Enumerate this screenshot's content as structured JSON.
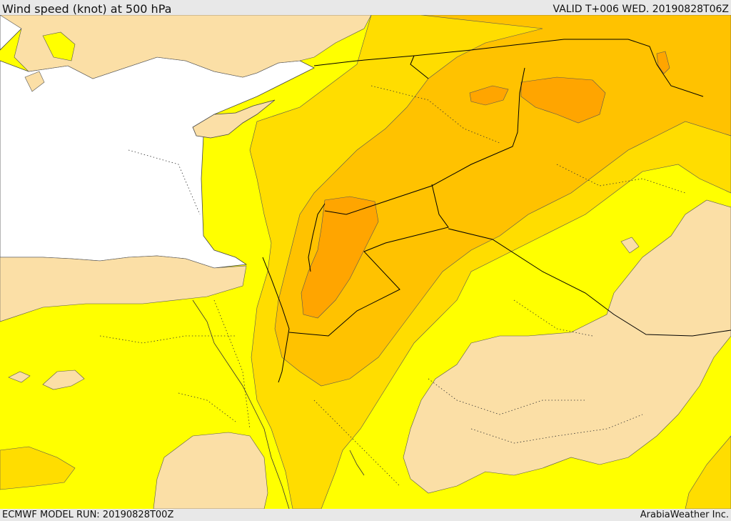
{
  "header": {
    "title": "Wind speed (knot) at 500 hPa",
    "valid": "VALID T+006 WED. 20190828T06Z"
  },
  "footer": {
    "model_run": "ECMWF MODEL RUN: 20190828T00Z",
    "credit": "ArabiaWeather Inc."
  },
  "colors": {
    "sea": "#ffffff",
    "low_wind_land": "#fbdfa6",
    "band_1": "#ffff00",
    "band_2": "#ffdd00",
    "band_3": "#ffc200",
    "band_4": "#ffa500",
    "contour": "#555555",
    "border": "#000000"
  }
}
